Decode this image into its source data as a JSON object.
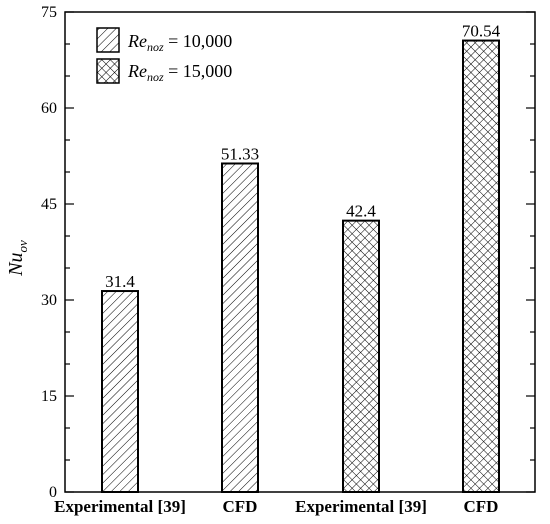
{
  "chart_data": {
    "type": "bar",
    "categories": [
      "Experimental [39]",
      "CFD",
      "Experimental [39]",
      "CFD"
    ],
    "values": [
      31.4,
      51.33,
      42.4,
      70.54
    ],
    "value_labels": [
      "31.4",
      "51.33",
      "42.4",
      "70.54"
    ],
    "bar_series_index": [
      0,
      0,
      1,
      1
    ],
    "series": [
      {
        "name": "Re_noz = 10,000",
        "name_main": "Re",
        "name_sub": "noz",
        "name_rest": " = 10,000",
        "pattern": "diagonal-hatch"
      },
      {
        "name": "Re_noz = 15,000",
        "name_main": "Re",
        "name_sub": "noz",
        "name_rest": " = 15,000",
        "pattern": "crosshatch"
      }
    ],
    "ylabel": "Nu_ov",
    "ylabel_main": "Nu",
    "ylabel_sub": "ov",
    "ylim": [
      0,
      75
    ],
    "yticks": [
      0,
      15,
      30,
      45,
      60,
      75
    ],
    "legend_position": "top-left",
    "grid": false
  }
}
